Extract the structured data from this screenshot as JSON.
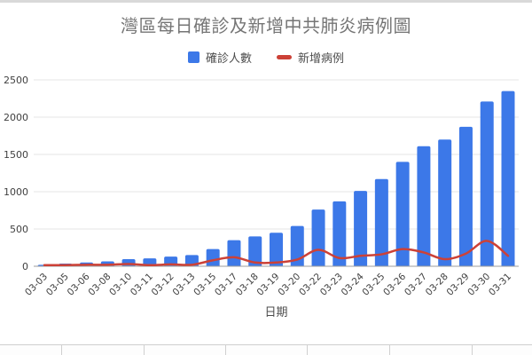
{
  "page": {
    "title": "灣區每日確診及新增中共肺炎病例圖"
  },
  "legend": {
    "items": [
      {
        "label": "確診人數",
        "color": "#3c78e8",
        "shape": "square"
      },
      {
        "label": "新增病例",
        "color": "#cc4137",
        "shape": "line"
      }
    ]
  },
  "chart_data": {
    "type": "bar",
    "title": "灣區每日確診及新增中共肺炎病例圖",
    "xlabel": "日期",
    "ylabel": "",
    "ylim": [
      0,
      2500
    ],
    "yticks": [
      0,
      500,
      1000,
      1500,
      2000,
      2500
    ],
    "grid": true,
    "legend_position": "top",
    "categories": [
      "03-03",
      "03-05",
      "03-06",
      "03-08",
      "03-10",
      "03-11",
      "03-12",
      "03-13",
      "03-15",
      "03-17",
      "03-18",
      "03-19",
      "03-20",
      "03-22",
      "03-23",
      "03-24",
      "03-25",
      "03-26",
      "03-27",
      "03-28",
      "03-29",
      "03-30",
      "03-31"
    ],
    "series": [
      {
        "name": "確診人數",
        "type": "bar",
        "color": "#3c78e8",
        "values": [
          20,
          35,
          50,
          65,
          95,
          105,
          130,
          150,
          230,
          350,
          400,
          450,
          540,
          760,
          870,
          1010,
          1170,
          1400,
          1610,
          1700,
          1870,
          2210,
          2350
        ]
      },
      {
        "name": "新增病例",
        "type": "line",
        "color": "#cc4137",
        "values": [
          15,
          15,
          20,
          20,
          30,
          15,
          25,
          20,
          80,
          120,
          50,
          50,
          90,
          220,
          110,
          140,
          160,
          230,
          185,
          95,
          170,
          340,
          140
        ]
      }
    ],
    "colors": {
      "gridline": "#e4e4e4",
      "baseline": "#9e9e9e",
      "tick_text": "#404040",
      "axis_title_text": "#4d4d4d",
      "title_text": "#757575"
    }
  }
}
